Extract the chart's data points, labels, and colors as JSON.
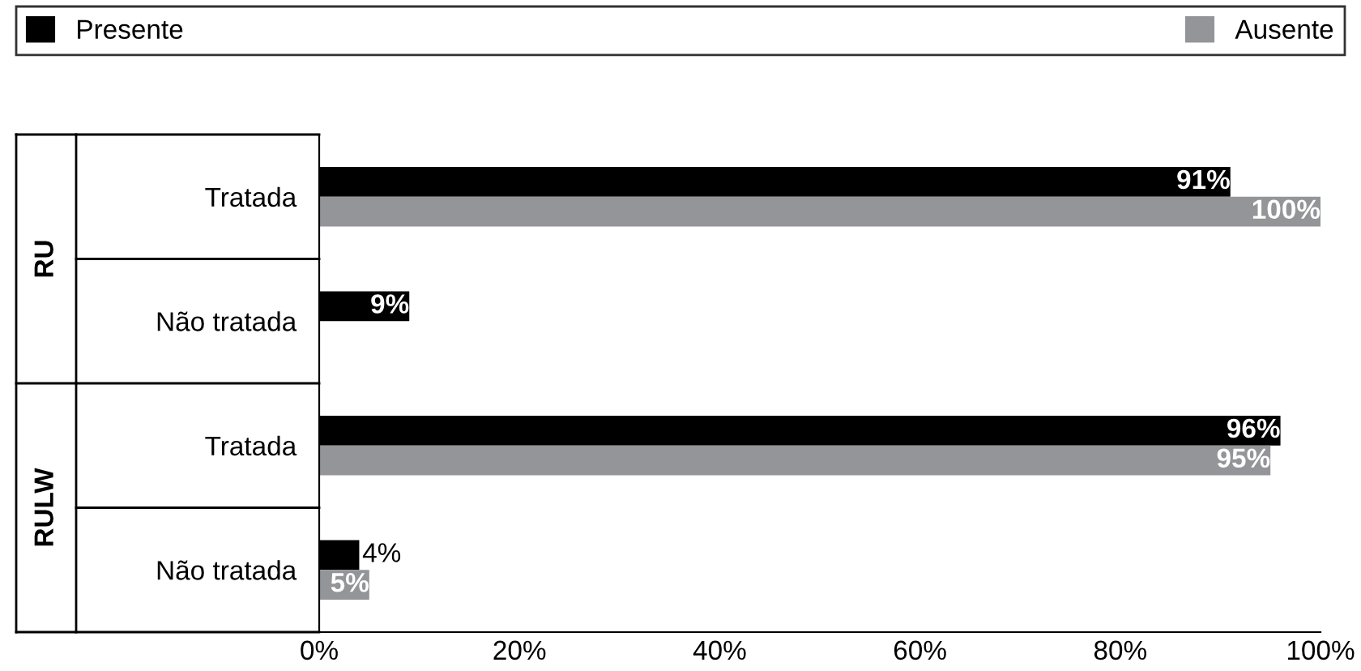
{
  "chart_data": {
    "type": "bar",
    "orientation": "horizontal",
    "categories": [
      "Tratada",
      "Não tratada",
      "Tratada",
      "Não tratada"
    ],
    "series": [
      {
        "name": "Presente",
        "color": "#000000",
        "values": [
          91,
          9,
          96,
          4
        ],
        "value_labels": [
          "91%",
          "9%",
          "96%",
          "4%"
        ]
      },
      {
        "name": "Ausente",
        "color": "#939598",
        "values": [
          100,
          null,
          95,
          5
        ],
        "value_labels": [
          "100%",
          null,
          "95%",
          "5%"
        ]
      }
    ],
    "xlim": [
      0,
      100
    ],
    "xticks": [
      {
        "value": 0,
        "label": "0%"
      },
      {
        "value": 20,
        "label": "20%"
      },
      {
        "value": 40,
        "label": "40%"
      },
      {
        "value": 60,
        "label": "60%"
      },
      {
        "value": 80,
        "label": "80%"
      },
      {
        "value": 100,
        "label": "100%"
      }
    ],
    "annotations": [
      "RU",
      "RULW"
    ],
    "legend": "top",
    "grid": false
  }
}
